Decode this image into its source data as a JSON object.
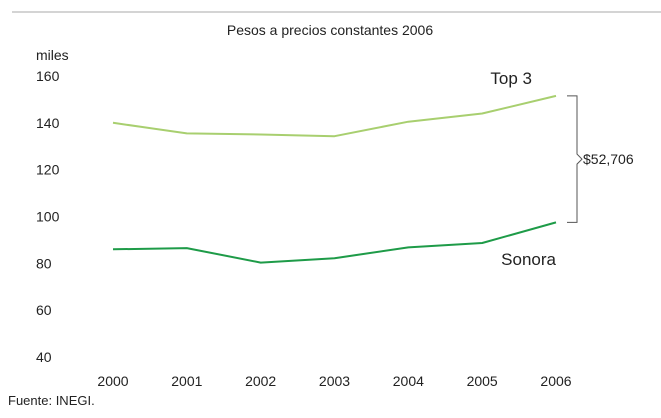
{
  "chart_data": {
    "type": "line",
    "subtitle": "Pesos a precios constantes 2006",
    "ylabel": "miles",
    "x": [
      "2000",
      "2001",
      "2002",
      "2003",
      "2004",
      "2005",
      "2006"
    ],
    "yticks": [
      40,
      60,
      80,
      100,
      120,
      140,
      160
    ],
    "ylim": [
      40,
      160
    ],
    "grid": false,
    "series": [
      {
        "name": "Top 3",
        "color": "#a8cf6f",
        "values": [
          140.0,
          135.5,
          135.0,
          134.3,
          140.5,
          144.0,
          151.5
        ]
      },
      {
        "name": "Sonora",
        "color": "#1e9b48",
        "values": [
          86.0,
          86.5,
          80.3,
          82.2,
          86.8,
          88.7,
          97.5
        ]
      }
    ],
    "annotation": {
      "text": "$52,706"
    },
    "source": "Fuente: INEGI."
  }
}
